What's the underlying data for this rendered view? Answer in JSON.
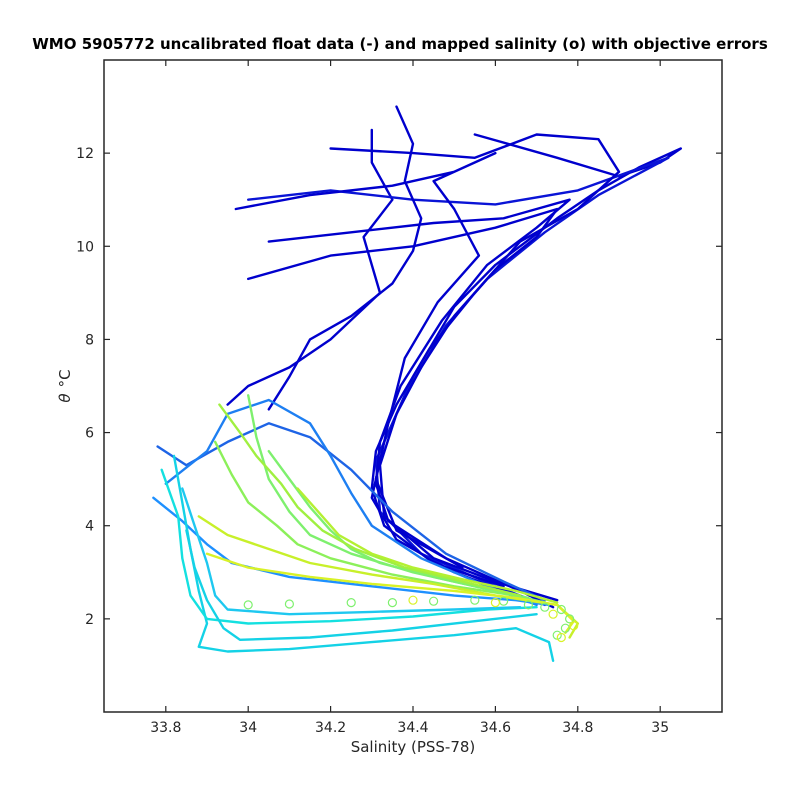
{
  "chart_data": {
    "type": "line",
    "title": "WMO 5905772 uncalibrated float data (-) and mapped salinity (o) with objective errors",
    "xlabel": "Salinity (PSS-78)",
    "ylabel_symbol": "θ",
    "ylabel_unit": "°C",
    "xlim": [
      33.65,
      35.15
    ],
    "ylim": [
      0,
      14
    ],
    "x_ticks": [
      "33.8",
      "34",
      "34.2",
      "34.4",
      "34.6",
      "34.8",
      "35"
    ],
    "x_tick_values": [
      33.8,
      34.0,
      34.2,
      34.4,
      34.6,
      34.8,
      35.0
    ],
    "y_ticks": [
      "2",
      "4",
      "6",
      "8",
      "10",
      "12"
    ],
    "y_tick_values": [
      2,
      4,
      6,
      8,
      10,
      12
    ],
    "grid": false,
    "colormap": [
      "#0000cd",
      "#1e7ff2",
      "#14d2e6",
      "#7ef06e",
      "#d9f227"
    ],
    "series": [
      {
        "color": "#0000cd",
        "style": "line",
        "points": [
          [
            34.55,
            12.4
          ],
          [
            34.75,
            11.9
          ],
          [
            34.9,
            11.5
          ],
          [
            35.0,
            11.8
          ],
          [
            35.05,
            12.1
          ],
          [
            34.95,
            11.7
          ],
          [
            34.85,
            11.2
          ],
          [
            34.75,
            10.6
          ],
          [
            34.6,
            9.6
          ],
          [
            34.5,
            8.7
          ],
          [
            34.4,
            7.2
          ],
          [
            34.33,
            5.8
          ],
          [
            34.3,
            4.6
          ],
          [
            34.36,
            3.7
          ],
          [
            34.5,
            3.0
          ],
          [
            34.62,
            2.6
          ],
          [
            34.7,
            2.35
          ]
        ]
      },
      {
        "color": "#0000cd",
        "style": "line",
        "points": [
          [
            34.3,
            12.5
          ],
          [
            34.3,
            11.8
          ],
          [
            34.35,
            11.0
          ],
          [
            34.28,
            10.2
          ],
          [
            34.32,
            9.0
          ],
          [
            34.2,
            8.0
          ],
          [
            34.1,
            7.4
          ],
          [
            34.0,
            7.0
          ],
          [
            33.95,
            6.6
          ]
        ]
      },
      {
        "color": "#0a14d6",
        "style": "line",
        "points": [
          [
            34.0,
            11.0
          ],
          [
            34.2,
            11.2
          ],
          [
            34.4,
            11.0
          ],
          [
            34.6,
            10.9
          ],
          [
            34.8,
            11.2
          ],
          [
            35.02,
            11.9
          ],
          [
            34.85,
            11.1
          ],
          [
            34.72,
            10.3
          ],
          [
            34.58,
            9.3
          ],
          [
            34.48,
            8.3
          ],
          [
            34.38,
            6.8
          ],
          [
            34.31,
            5.4
          ],
          [
            34.32,
            4.3
          ],
          [
            34.42,
            3.4
          ],
          [
            34.6,
            2.7
          ],
          [
            34.72,
            2.3
          ]
        ]
      },
      {
        "color": "#0000cd",
        "style": "line",
        "points": [
          [
            34.0,
            9.3
          ],
          [
            34.2,
            9.8
          ],
          [
            34.4,
            10.0
          ],
          [
            34.6,
            10.4
          ],
          [
            34.75,
            10.8
          ],
          [
            34.7,
            10.2
          ],
          [
            34.6,
            9.5
          ],
          [
            34.5,
            8.5
          ],
          [
            34.42,
            7.4
          ],
          [
            34.36,
            6.4
          ],
          [
            34.32,
            5.3
          ],
          [
            34.33,
            4.2
          ],
          [
            34.45,
            3.3
          ],
          [
            34.6,
            2.8
          ],
          [
            34.75,
            2.4
          ]
        ]
      },
      {
        "color": "#0000cd",
        "style": "line",
        "points": [
          [
            33.97,
            10.8
          ],
          [
            34.15,
            11.1
          ],
          [
            34.35,
            11.3
          ],
          [
            34.5,
            11.6
          ],
          [
            34.6,
            12.0
          ],
          [
            34.45,
            11.4
          ],
          [
            34.5,
            10.8
          ],
          [
            34.56,
            9.8
          ],
          [
            34.46,
            8.8
          ],
          [
            34.38,
            7.6
          ],
          [
            34.34,
            6.2
          ],
          [
            34.31,
            5.0
          ],
          [
            34.36,
            3.9
          ],
          [
            34.52,
            3.1
          ]
        ]
      },
      {
        "color": "#0000cd",
        "style": "line",
        "points": [
          [
            34.2,
            12.1
          ],
          [
            34.4,
            12.0
          ],
          [
            34.55,
            11.9
          ],
          [
            34.7,
            12.4
          ],
          [
            34.85,
            12.3
          ],
          [
            34.9,
            11.6
          ],
          [
            34.8,
            10.8
          ],
          [
            34.66,
            10.1
          ],
          [
            34.55,
            9.0
          ],
          [
            34.44,
            7.8
          ],
          [
            34.36,
            6.6
          ],
          [
            34.31,
            5.6
          ],
          [
            34.3,
            4.8
          ],
          [
            34.33,
            4.0
          ],
          [
            34.45,
            3.2
          ],
          [
            34.62,
            2.7
          ]
        ]
      },
      {
        "color": "#0000cd",
        "style": "line",
        "points": [
          [
            34.36,
            13.0
          ],
          [
            34.4,
            12.2
          ],
          [
            34.38,
            11.4
          ],
          [
            34.42,
            10.6
          ],
          [
            34.4,
            9.9
          ],
          [
            34.35,
            9.2
          ],
          [
            34.25,
            8.5
          ],
          [
            34.15,
            8.0
          ],
          [
            34.1,
            7.2
          ],
          [
            34.05,
            6.5
          ]
        ]
      },
      {
        "color": "#0000cd",
        "style": "line",
        "points": [
          [
            34.05,
            10.1
          ],
          [
            34.25,
            10.3
          ],
          [
            34.45,
            10.5
          ],
          [
            34.62,
            10.6
          ],
          [
            34.78,
            11.0
          ],
          [
            34.7,
            10.4
          ],
          [
            34.58,
            9.6
          ],
          [
            34.47,
            8.4
          ],
          [
            34.37,
            7.0
          ],
          [
            34.32,
            5.8
          ],
          [
            34.31,
            4.9
          ],
          [
            34.34,
            4.1
          ],
          [
            34.48,
            3.3
          ],
          [
            34.66,
            2.6
          ],
          [
            34.74,
            2.25
          ]
        ]
      },
      {
        "color": "#1e64e6",
        "style": "line",
        "points": [
          [
            33.78,
            5.7
          ],
          [
            33.85,
            5.3
          ],
          [
            33.95,
            5.8
          ],
          [
            34.05,
            6.2
          ],
          [
            34.15,
            5.9
          ],
          [
            34.25,
            5.2
          ],
          [
            34.35,
            4.3
          ],
          [
            34.48,
            3.4
          ],
          [
            34.62,
            2.8
          ],
          [
            34.72,
            2.4
          ]
        ]
      },
      {
        "color": "#1e7ff2",
        "style": "line",
        "points": [
          [
            33.8,
            4.9
          ],
          [
            33.9,
            5.6
          ],
          [
            33.95,
            6.4
          ],
          [
            34.05,
            6.7
          ],
          [
            34.15,
            6.2
          ],
          [
            34.2,
            5.5
          ],
          [
            34.25,
            4.7
          ],
          [
            34.3,
            4.0
          ],
          [
            34.42,
            3.3
          ],
          [
            34.58,
            2.7
          ],
          [
            34.7,
            2.3
          ]
        ]
      },
      {
        "color": "#1e90ff",
        "style": "line",
        "points": [
          [
            33.77,
            4.6
          ],
          [
            33.84,
            4.1
          ],
          [
            33.9,
            3.6
          ],
          [
            33.96,
            3.2
          ],
          [
            34.1,
            2.9
          ],
          [
            34.3,
            2.7
          ],
          [
            34.5,
            2.5
          ],
          [
            34.65,
            2.4
          ],
          [
            34.73,
            2.3
          ]
        ]
      },
      {
        "color": "#14d2e6",
        "style": "line",
        "points": [
          [
            33.82,
            5.5
          ],
          [
            33.84,
            4.5
          ],
          [
            33.86,
            3.5
          ],
          [
            33.88,
            2.6
          ],
          [
            33.9,
            1.9
          ],
          [
            33.88,
            1.4
          ],
          [
            33.95,
            1.3
          ],
          [
            34.1,
            1.35
          ],
          [
            34.3,
            1.5
          ],
          [
            34.5,
            1.65
          ],
          [
            34.65,
            1.8
          ],
          [
            34.73,
            1.5
          ],
          [
            34.74,
            1.1
          ]
        ]
      },
      {
        "color": "#14e0e0",
        "style": "line",
        "points": [
          [
            33.79,
            5.2
          ],
          [
            33.83,
            4.2
          ],
          [
            33.84,
            3.3
          ],
          [
            33.86,
            2.5
          ],
          [
            33.9,
            2.0
          ],
          [
            34.0,
            1.9
          ],
          [
            34.2,
            1.95
          ],
          [
            34.4,
            2.05
          ],
          [
            34.58,
            2.2
          ],
          [
            34.7,
            2.25
          ]
        ]
      },
      {
        "color": "#1ec8f0",
        "style": "line",
        "points": [
          [
            33.84,
            4.8
          ],
          [
            33.87,
            4.0
          ],
          [
            33.9,
            3.2
          ],
          [
            33.92,
            2.5
          ],
          [
            33.95,
            2.2
          ],
          [
            34.1,
            2.1
          ],
          [
            34.3,
            2.15
          ],
          [
            34.5,
            2.2
          ],
          [
            34.66,
            2.25
          ]
        ]
      },
      {
        "color": "#14d2e6",
        "style": "line",
        "points": [
          [
            33.85,
            3.9
          ],
          [
            33.87,
            3.1
          ],
          [
            33.9,
            2.4
          ],
          [
            33.94,
            1.8
          ],
          [
            33.98,
            1.55
          ],
          [
            34.15,
            1.6
          ],
          [
            34.35,
            1.75
          ],
          [
            34.55,
            1.95
          ],
          [
            34.7,
            2.1
          ]
        ]
      },
      {
        "color": "#7ef06e",
        "style": "line",
        "points": [
          [
            34.0,
            6.8
          ],
          [
            34.02,
            5.9
          ],
          [
            34.05,
            5.0
          ],
          [
            34.1,
            4.3
          ],
          [
            34.15,
            3.8
          ],
          [
            34.25,
            3.4
          ],
          [
            34.4,
            3.0
          ],
          [
            34.55,
            2.7
          ],
          [
            34.68,
            2.45
          ]
        ]
      },
      {
        "color": "#8cf05a",
        "style": "line",
        "points": [
          [
            33.92,
            5.8
          ],
          [
            33.96,
            5.1
          ],
          [
            34.0,
            4.5
          ],
          [
            34.07,
            4.0
          ],
          [
            34.12,
            3.6
          ],
          [
            34.2,
            3.3
          ],
          [
            34.35,
            2.95
          ],
          [
            34.5,
            2.7
          ],
          [
            34.65,
            2.5
          ]
        ]
      },
      {
        "color": "#7ef06e",
        "style": "line",
        "points": [
          [
            34.05,
            5.6
          ],
          [
            34.1,
            5.0
          ],
          [
            34.15,
            4.4
          ],
          [
            34.2,
            3.9
          ],
          [
            34.25,
            3.5
          ],
          [
            34.32,
            3.2
          ],
          [
            34.45,
            2.9
          ],
          [
            34.6,
            2.6
          ],
          [
            34.72,
            2.35
          ]
        ]
      },
      {
        "color": "#a0f040",
        "style": "line",
        "points": [
          [
            33.93,
            6.6
          ],
          [
            33.98,
            6.0
          ],
          [
            34.02,
            5.5
          ],
          [
            34.08,
            4.9
          ],
          [
            34.12,
            4.4
          ],
          [
            34.18,
            3.9
          ],
          [
            34.26,
            3.5
          ],
          [
            34.38,
            3.1
          ],
          [
            34.52,
            2.8
          ],
          [
            34.66,
            2.5
          ]
        ]
      },
      {
        "color": "#c8f02a",
        "style": "line",
        "points": [
          [
            33.88,
            4.2
          ],
          [
            33.95,
            3.8
          ],
          [
            34.05,
            3.5
          ],
          [
            34.15,
            3.2
          ],
          [
            34.3,
            2.95
          ],
          [
            34.45,
            2.75
          ],
          [
            34.6,
            2.5
          ],
          [
            34.75,
            2.3
          ],
          [
            34.8,
            1.9
          ],
          [
            34.78,
            1.6
          ]
        ]
      },
      {
        "color": "#d9f227",
        "style": "line",
        "points": [
          [
            33.9,
            3.4
          ],
          [
            34.0,
            3.1
          ],
          [
            34.15,
            2.9
          ],
          [
            34.3,
            2.75
          ],
          [
            34.5,
            2.6
          ],
          [
            34.65,
            2.45
          ],
          [
            34.75,
            2.3
          ],
          [
            34.79,
            1.95
          ],
          [
            34.77,
            1.7
          ]
        ]
      },
      {
        "color": "#b4f032",
        "style": "line",
        "points": [
          [
            34.12,
            4.8
          ],
          [
            34.17,
            4.3
          ],
          [
            34.22,
            3.8
          ],
          [
            34.3,
            3.4
          ],
          [
            34.4,
            3.1
          ],
          [
            34.52,
            2.85
          ],
          [
            34.65,
            2.6
          ],
          [
            34.75,
            2.35
          ]
        ]
      },
      {
        "color": "#7ef06e",
        "style": "points",
        "points": [
          [
            34.25,
            2.35
          ],
          [
            34.35,
            2.35
          ],
          [
            34.45,
            2.38
          ],
          [
            34.55,
            2.4
          ],
          [
            34.62,
            2.38
          ],
          [
            34.68,
            2.3
          ],
          [
            34.72,
            2.25
          ],
          [
            34.76,
            2.2
          ],
          [
            34.78,
            2.0
          ],
          [
            34.77,
            1.8
          ],
          [
            34.75,
            1.65
          ],
          [
            34.0,
            2.3
          ],
          [
            34.1,
            2.32
          ]
        ]
      },
      {
        "color": "#d9f227",
        "style": "points",
        "points": [
          [
            34.4,
            2.4
          ],
          [
            34.6,
            2.35
          ],
          [
            34.74,
            2.1
          ],
          [
            34.79,
            1.85
          ],
          [
            34.76,
            1.6
          ]
        ]
      }
    ]
  }
}
